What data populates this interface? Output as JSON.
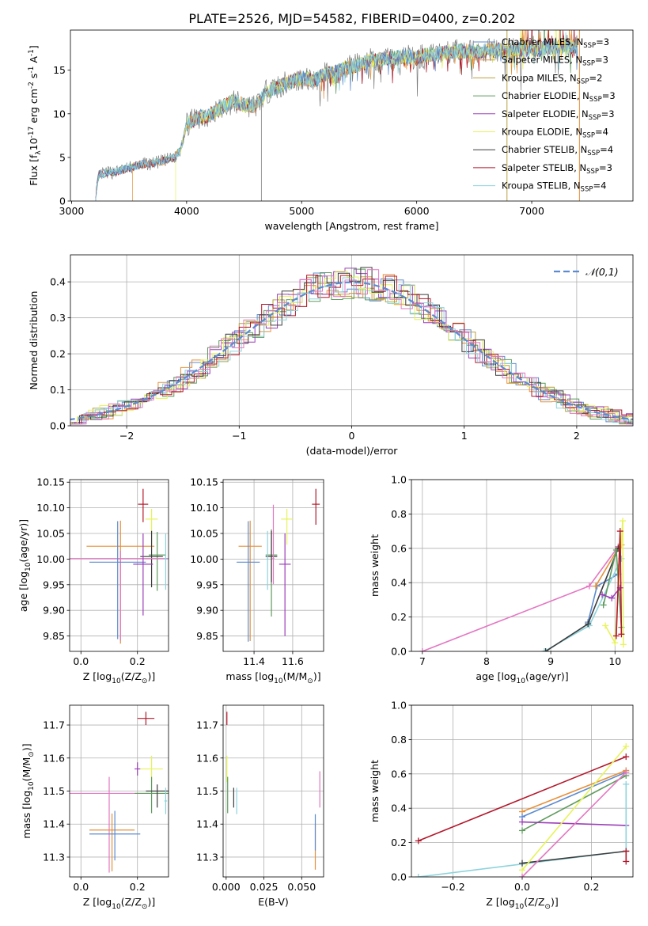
{
  "title": "PLATE=2526, MJD=54582, FIBERID=0400, z=0.202",
  "colors": {
    "chab_miles": "#5b8bd0",
    "salp_miles": "#e6913a",
    "krou_miles": "#b8a040",
    "chab_elodie": "#5e9b5e",
    "salp_elodie": "#9b3fb8",
    "krou_elodie": "#e7f35a",
    "chab_stelib": "#3c3c3c",
    "salp_stelib": "#b2182b",
    "krou_stelib": "#8dd3dc",
    "pink": "#e377c2",
    "olive": "#bcbd22",
    "grey": "#7f7f7f",
    "normal": "#5b8bd0"
  },
  "chart_data": [
    {
      "id": "spectrum",
      "type": "line",
      "xlabel": "wavelength [Angstrom, rest frame]",
      "ylabel": "Flux [f$_\\lambda$10$^{-17}$ erg cm$^{-2}$ s$^{-1}$ A$^{-1}$]",
      "xlim": [
        2990,
        7880
      ],
      "ylim": [
        0,
        19.6
      ],
      "xticks": [
        3000,
        4000,
        5000,
        6000,
        7000
      ],
      "yticks": [
        0,
        5,
        10,
        15
      ],
      "legend_position": "top-right",
      "legend": [
        {
          "label": "Chabrier MILES, N",
          "sub": "SSP",
          "tail": "=3",
          "color": "chab_miles"
        },
        {
          "label": "Salpeter MILES, N",
          "sub": "SSP",
          "tail": "=3",
          "color": "salp_miles"
        },
        {
          "label": "Kroupa MILES, N",
          "sub": "SSP",
          "tail": "=2",
          "color": "krou_miles"
        },
        {
          "label": "Chabrier ELODIE, N",
          "sub": "SSP",
          "tail": "=3",
          "color": "chab_elodie"
        },
        {
          "label": "Salpeter ELODIE, N",
          "sub": "SSP",
          "tail": "=3",
          "color": "salp_elodie"
        },
        {
          "label": "Kroupa ELODIE, N",
          "sub": "SSP",
          "tail": "=4",
          "color": "krou_elodie"
        },
        {
          "label": "Chabrier STELIB, N",
          "sub": "SSP",
          "tail": "=4",
          "color": "chab_stelib"
        },
        {
          "label": "Salpeter STELIB, N",
          "sub": "SSP",
          "tail": "=3",
          "color": "salp_stelib"
        },
        {
          "label": "Kroupa STELIB, N",
          "sub": "SSP",
          "tail": "=4",
          "color": "krou_stelib"
        }
      ],
      "data_x": [
        3200,
        3240,
        3300,
        3400,
        3500,
        3600,
        3700,
        3800,
        3900,
        3950,
        4000,
        4100,
        4200,
        4300,
        4400,
        4500,
        4600,
        4700,
        4800,
        4900,
        5000,
        5100,
        5200,
        5300,
        5400,
        5500,
        5600,
        5700,
        5800,
        5900,
        6000,
        6100,
        6200,
        6300,
        6400,
        6500,
        6600,
        6700,
        6800,
        6900,
        7000,
        7100,
        7200,
        7300,
        7400
      ],
      "data_y": [
        0,
        3.0,
        3.2,
        3.4,
        3.8,
        4.2,
        4.3,
        4.6,
        5.0,
        6.0,
        8.8,
        9.6,
        9.8,
        10.6,
        11.4,
        11.0,
        10.9,
        12.6,
        13.1,
        13.7,
        14.1,
        13.8,
        14.5,
        14.8,
        15.4,
        15.6,
        16.1,
        16.2,
        16.4,
        16.6,
        16.4,
        16.8,
        16.9,
        17.1,
        17.2,
        17.1,
        17.2,
        17.3,
        17.3,
        17.4,
        17.3,
        17.5,
        17.6,
        17.7,
        17.8
      ]
    },
    {
      "id": "hist",
      "type": "line",
      "xlabel": "(data-model)/error",
      "ylabel": "Normed distribution",
      "xlim": [
        -2.5,
        2.5
      ],
      "ylim": [
        0,
        0.475
      ],
      "xticks": [
        -2,
        -1,
        0,
        1,
        2
      ],
      "yticks": [
        0.0,
        0.1,
        0.2,
        0.3,
        0.4
      ],
      "legend_position": "top-right",
      "legend": [
        {
          "label": "$\\mathcal{N}(0,1)$",
          "color": "normal"
        }
      ],
      "curve": "gaussian, mean 0, sigma 1"
    },
    {
      "id": "age_vs_z",
      "type": "scatter",
      "xlabel": "Z [log$_{10}$($Z/Z_\\odot$)]",
      "ylabel": "age  [log$_{10}$($age/yr$)]",
      "xlim": [
        -0.04,
        0.31
      ],
      "ylim": [
        9.82,
        10.155
      ],
      "xticks": [
        0.0,
        0.2
      ],
      "yticks": [
        9.85,
        9.9,
        9.95,
        10.0,
        10.05,
        10.1,
        10.15
      ],
      "points": [
        {
          "x": 0.22,
          "y": 10.107,
          "xerr": 0.018,
          "yerr_lo": 0.035,
          "yerr_hi": 0.03,
          "color": "salp_stelib"
        },
        {
          "x": 0.25,
          "y": 10.078,
          "xerr": 0.022,
          "yerr_lo": 0.05,
          "yerr_hi": 0.02,
          "color": "krou_elodie"
        },
        {
          "x": 0.14,
          "y": 10.025,
          "xerr": 0.12,
          "yerr_lo": 0.19,
          "yerr_hi": 0.05,
          "color": "salp_miles"
        },
        {
          "x": 0.27,
          "y": 10.008,
          "xerr": 0.03,
          "yerr_lo": 0.07,
          "yerr_hi": 0.045,
          "color": "chab_elodie"
        },
        {
          "x": 0.25,
          "y": 10.005,
          "xerr": 0.04,
          "yerr_lo": 0.06,
          "yerr_hi": 0.05,
          "color": "chab_stelib"
        },
        {
          "x": 0.14,
          "y": 10.001,
          "xerr": 0.2,
          "yerr_lo": 0.16,
          "yerr_hi": 0.015,
          "color": "pink"
        },
        {
          "x": 0.13,
          "y": 9.994,
          "xerr": 0.1,
          "yerr_lo": 0.15,
          "yerr_hi": 0.08,
          "color": "chab_miles"
        },
        {
          "x": 0.22,
          "y": 9.99,
          "xerr": 0.035,
          "yerr_lo": 0.1,
          "yerr_hi": 0.06,
          "color": "salp_elodie"
        },
        {
          "x": 0.3,
          "y": 10.0,
          "xerr": 0.006,
          "yerr_lo": 0.06,
          "yerr_hi": 0.05,
          "color": "krou_stelib"
        }
      ]
    },
    {
      "id": "age_vs_mass",
      "type": "scatter",
      "xlabel": "mass [log$_{10}$($M/M_\\odot$)]",
      "ylabel": "",
      "xlim": [
        11.24,
        11.76
      ],
      "ylim": [
        9.82,
        10.155
      ],
      "xticks": [
        11.4,
        11.6
      ],
      "yticks": [
        9.85,
        9.9,
        9.95,
        10.0,
        10.05,
        10.1,
        10.15
      ],
      "points": [
        {
          "x": 11.72,
          "y": 10.107,
          "xerr": 0.02,
          "yerr_lo": 0.04,
          "yerr_hi": 0.03,
          "color": "salp_stelib"
        },
        {
          "x": 11.57,
          "y": 10.078,
          "xerr": 0.03,
          "yerr_lo": 0.05,
          "yerr_hi": 0.02,
          "color": "krou_elodie"
        },
        {
          "x": 11.38,
          "y": 10.025,
          "xerr": 0.06,
          "yerr_lo": 0.185,
          "yerr_hi": 0.05,
          "color": "salp_miles"
        },
        {
          "x": 11.49,
          "y": 10.008,
          "xerr": 0.03,
          "yerr_lo": 0.12,
          "yerr_hi": 0.05,
          "color": "chab_elodie"
        },
        {
          "x": 11.49,
          "y": 10.005,
          "xerr": 0.03,
          "yerr_lo": 0.05,
          "yerr_hi": 0.05,
          "color": "chab_stelib"
        },
        {
          "x": 11.5,
          "y": 10.001,
          "xerr": 0.005,
          "yerr_lo": 0.05,
          "yerr_hi": 0.105,
          "color": "pink"
        },
        {
          "x": 11.37,
          "y": 9.994,
          "xerr": 0.06,
          "yerr_lo": 0.155,
          "yerr_hi": 0.08,
          "color": "chab_miles"
        },
        {
          "x": 11.56,
          "y": 9.99,
          "xerr": 0.03,
          "yerr_lo": 0.14,
          "yerr_hi": 0.06,
          "color": "salp_elodie"
        },
        {
          "x": 11.47,
          "y": 10.0,
          "xerr": 0.005,
          "yerr_lo": 0.06,
          "yerr_hi": 0.055,
          "color": "krou_stelib"
        }
      ]
    },
    {
      "id": "weight_vs_age",
      "type": "line",
      "xlabel": "age  [log$_{10}$($age/yr$)]",
      "ylabel": "mass weight",
      "xlim": [
        6.83,
        10.28
      ],
      "ylim": [
        0,
        1.0
      ],
      "xticks": [
        7,
        8,
        9,
        10
      ],
      "yticks": [
        0.0,
        0.2,
        0.4,
        0.6,
        0.8,
        1.0
      ],
      "series": [
        {
          "color": "pink",
          "x": [
            7.0,
            9.6,
            10.05
          ],
          "y": [
            0.0,
            0.38,
            0.61
          ]
        },
        {
          "color": "chab_miles",
          "x": [
            9.58,
            9.72,
            10.05
          ],
          "y": [
            0.17,
            0.38,
            0.45
          ]
        },
        {
          "color": "salp_miles",
          "x": [
            9.7,
            10.05,
            10.1
          ],
          "y": [
            0.38,
            0.6,
            0.62
          ]
        },
        {
          "color": "krou_stelib",
          "x": [
            8.9,
            9.6,
            10.1
          ],
          "y": [
            0.0,
            0.15,
            0.54
          ]
        },
        {
          "color": "chab_stelib",
          "x": [
            8.92,
            9.58,
            10.05
          ],
          "y": [
            0.0,
            0.16,
            0.6
          ]
        },
        {
          "color": "chab_elodie",
          "x": [
            9.82,
            10.02,
            10.1
          ],
          "y": [
            0.27,
            0.59,
            0.14
          ]
        },
        {
          "color": "krou_elodie",
          "x": [
            9.85,
            10.0,
            10.12,
            10.13
          ],
          "y": [
            0.15,
            0.05,
            0.76,
            0.04
          ]
        },
        {
          "color": "salp_elodie",
          "x": [
            9.8,
            9.95,
            10.08
          ],
          "y": [
            0.33,
            0.31,
            0.37
          ]
        },
        {
          "color": "salp_stelib",
          "x": [
            10.02,
            10.08,
            10.1
          ],
          "y": [
            0.09,
            0.7,
            0.1
          ]
        }
      ]
    },
    {
      "id": "mass_vs_z",
      "type": "scatter",
      "xlabel": "Z [log$_{10}$($Z/Z_\\odot$)]",
      "ylabel": "mass [log$_{10}$($M/M_\\odot$)]",
      "xlim": [
        -0.04,
        0.31
      ],
      "ylim": [
        11.24,
        11.76
      ],
      "xticks": [
        0.0,
        0.2
      ],
      "yticks": [
        11.3,
        11.4,
        11.5,
        11.6,
        11.7
      ],
      "points": [
        {
          "x": 0.23,
          "y": 11.72,
          "xerr": 0.03,
          "yerr_lo": 0.02,
          "yerr_hi": 0.02,
          "color": "salp_stelib"
        },
        {
          "x": 0.25,
          "y": 11.567,
          "xerr": 0.04,
          "yerr_lo": 0.04,
          "yerr_hi": 0.04,
          "color": "krou_elodie"
        },
        {
          "x": 0.2,
          "y": 11.567,
          "xerr": 0.01,
          "yerr_lo": 0.02,
          "yerr_hi": 0.02,
          "color": "salp_elodie"
        },
        {
          "x": 0.1,
          "y": 11.493,
          "xerr": 0.14,
          "yerr_lo": 0.24,
          "yerr_hi": 0.05,
          "color": "pink"
        },
        {
          "x": 0.25,
          "y": 11.493,
          "xerr": 0.06,
          "yerr_lo": 0.06,
          "yerr_hi": 0.05,
          "color": "chab_elodie"
        },
        {
          "x": 0.27,
          "y": 11.5,
          "xerr": 0.04,
          "yerr_lo": 0.05,
          "yerr_hi": 0.02,
          "color": "chab_stelib"
        },
        {
          "x": 0.3,
          "y": 11.47,
          "xerr": 0.005,
          "yerr_lo": 0.04,
          "yerr_hi": 0.04,
          "color": "krou_stelib"
        },
        {
          "x": 0.11,
          "y": 11.382,
          "xerr": 0.08,
          "yerr_lo": 0.125,
          "yerr_hi": 0.05,
          "color": "salp_miles"
        },
        {
          "x": 0.12,
          "y": 11.37,
          "xerr": 0.09,
          "yerr_lo": 0.08,
          "yerr_hi": 0.07,
          "color": "chab_miles"
        }
      ]
    },
    {
      "id": "mass_vs_ebv",
      "type": "scatter",
      "xlabel": "E(B-V)",
      "ylabel": "",
      "xlim": [
        -0.002,
        0.0645
      ],
      "ylim": [
        11.24,
        11.76
      ],
      "xticks": [
        0.0,
        0.025,
        0.05
      ],
      "yticks": [
        11.3,
        11.4,
        11.5,
        11.6,
        11.7
      ],
      "points": [
        {
          "x": 0.0005,
          "y": 11.72,
          "yerr_lo": 0.02,
          "yerr_hi": 0.02,
          "color": "salp_stelib"
        },
        {
          "x": 0.0005,
          "y": 11.567,
          "yerr_lo": 0.04,
          "yerr_hi": 0.04,
          "color": "krou_elodie"
        },
        {
          "x": 0.001,
          "y": 11.493,
          "yerr_lo": 0.06,
          "yerr_hi": 0.05,
          "color": "chab_elodie"
        },
        {
          "x": 0.005,
          "y": 11.49,
          "yerr_lo": 0.04,
          "yerr_hi": 0.02,
          "color": "chab_stelib"
        },
        {
          "x": 0.007,
          "y": 11.47,
          "yerr_lo": 0.04,
          "yerr_hi": 0.04,
          "color": "krou_stelib"
        },
        {
          "x": 0.062,
          "y": 11.5,
          "yerr_lo": 0.05,
          "yerr_hi": 0.06,
          "color": "pink"
        },
        {
          "x": 0.059,
          "y": 11.382,
          "yerr_lo": 0.12,
          "yerr_hi": 0.02,
          "color": "salp_miles"
        },
        {
          "x": 0.059,
          "y": 11.37,
          "yerr_lo": 0.05,
          "yerr_hi": 0.06,
          "color": "chab_miles"
        }
      ]
    },
    {
      "id": "weight_vs_z",
      "type": "line",
      "xlabel": "Z [log$_{10}$($Z/Z_\\odot$)]",
      "ylabel": "mass weight",
      "xlim": [
        -0.32,
        0.32
      ],
      "ylim": [
        0,
        1.0
      ],
      "xticks": [
        -0.2,
        0.0,
        0.2
      ],
      "yticks": [
        0.0,
        0.2,
        0.4,
        0.6,
        0.8,
        1.0
      ],
      "series": [
        {
          "color": "salp_stelib",
          "x": [
            -0.3,
            0.3
          ],
          "y": [
            0.21,
            0.7
          ]
        },
        {
          "color": "krou_stelib",
          "x": [
            -0.3,
            0.3
          ],
          "y": [
            0.0,
            0.15
          ]
        },
        {
          "color": "chab_stelib",
          "x": [
            0.0,
            0.3
          ],
          "y": [
            0.08,
            0.15
          ]
        },
        {
          "color": "salp_miles",
          "x": [
            0.0,
            0.3
          ],
          "y": [
            0.38,
            0.62
          ]
        },
        {
          "color": "chab_miles",
          "x": [
            0.0,
            0.3
          ],
          "y": [
            0.35,
            0.61
          ]
        },
        {
          "color": "chab_elodie",
          "x": [
            0.0,
            0.3
          ],
          "y": [
            0.27,
            0.59
          ]
        },
        {
          "color": "salp_elodie",
          "x": [
            0.0,
            0.3
          ],
          "y": [
            0.32,
            0.3
          ]
        },
        {
          "color": "krou_elodie",
          "x": [
            0.0,
            0.3
          ],
          "y": [
            0.04,
            0.76
          ]
        },
        {
          "color": "pink",
          "x": [
            0.0,
            0.3
          ],
          "y": [
            0.0,
            0.61
          ]
        },
        {
          "color": "krou_stelib",
          "x": [
            0.3,
            0.3
          ],
          "y": [
            0.54,
            0.15
          ]
        },
        {
          "color": "salp_stelib",
          "x": [
            0.3,
            0.3
          ],
          "y": [
            0.09,
            0.15
          ]
        }
      ]
    }
  ]
}
